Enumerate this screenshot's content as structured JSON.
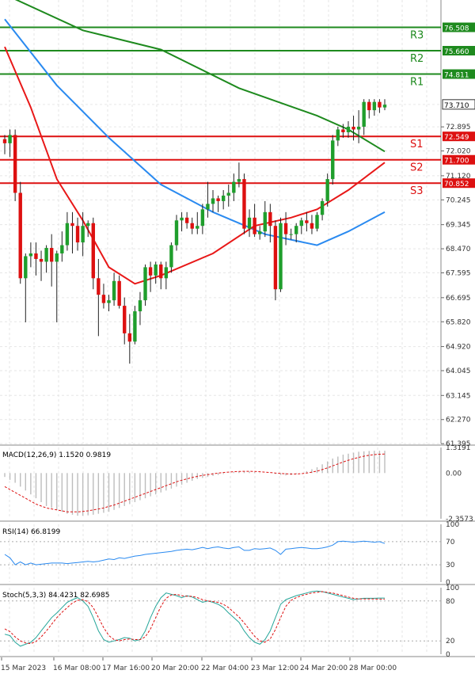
{
  "chart_data": [
    {
      "type": "candlestick",
      "title": "",
      "x_labels": [
        "15 Mar 2023",
        "16 Mar 08:00",
        "17 Mar 16:00",
        "20 Mar 20:00",
        "22 Mar 04:00",
        "23 Mar 12:00",
        "24 Mar 20:00",
        "28 Mar 00:00"
      ],
      "y_ticks": [
        "76.508",
        "75.660",
        "74.811",
        "73.710",
        "72.895",
        "72.549",
        "72.020",
        "71.700",
        "71.120",
        "70.852",
        "70.245",
        "69.345",
        "68.470",
        "67.595",
        "66.695",
        "65.820",
        "64.920",
        "64.045",
        "63.145",
        "62.270",
        "61.395"
      ],
      "ylim": [
        61.4,
        77.5
      ],
      "colors": {
        "up": "#1f9e2c",
        "down": "#dd1010",
        "wick": "#222222"
      },
      "levels": [
        {
          "label": "R3",
          "value": 76.508,
          "price": "76.508",
          "color": "#1e8a1e"
        },
        {
          "label": "R2",
          "value": 75.66,
          "price": "75.660",
          "color": "#1e8a1e"
        },
        {
          "label": "R1",
          "value": 74.811,
          "price": "74.811",
          "color": "#1e8a1e"
        },
        {
          "label": "S1",
          "value": 72.549,
          "price": "72.549",
          "color": "#dd1010"
        },
        {
          "label": "S2",
          "value": 71.7,
          "price": "71.700",
          "color": "#dd1010"
        },
        {
          "label": "S3",
          "value": 70.852,
          "price": "70.852",
          "color": "#dd1010"
        }
      ],
      "current_price": {
        "value": 73.71,
        "label": "73.710"
      },
      "candles": [
        [
          72.45,
          72.6,
          71.9,
          72.3
        ],
        [
          72.3,
          72.8,
          71.8,
          72.6
        ],
        [
          72.6,
          72.8,
          70.2,
          70.5
        ],
        [
          70.5,
          70.9,
          67.2,
          67.4
        ],
        [
          67.4,
          68.3,
          65.8,
          68.2
        ],
        [
          68.2,
          68.7,
          67.8,
          68.3
        ],
        [
          68.3,
          68.7,
          67.5,
          68.1
        ],
        [
          68.1,
          68.4,
          67.3,
          68.0
        ],
        [
          68.0,
          68.6,
          67.6,
          68.5
        ],
        [
          68.5,
          69.0,
          67.1,
          68.0
        ],
        [
          68.0,
          68.4,
          65.8,
          68.3
        ],
        [
          68.3,
          69.1,
          68.0,
          68.6
        ],
        [
          68.6,
          69.8,
          68.4,
          69.4
        ],
        [
          69.4,
          69.8,
          68.3,
          69.3
        ],
        [
          69.3,
          69.6,
          68.4,
          68.7
        ],
        [
          68.7,
          69.8,
          68.2,
          69.3
        ],
        [
          69.3,
          69.5,
          68.9,
          69.4
        ],
        [
          69.4,
          69.6,
          67.0,
          67.4
        ],
        [
          67.4,
          68.1,
          65.3,
          66.8
        ],
        [
          66.8,
          67.2,
          66.3,
          66.5
        ],
        [
          66.5,
          66.8,
          66.2,
          66.6
        ],
        [
          66.6,
          67.6,
          66.4,
          67.3
        ],
        [
          67.3,
          67.5,
          66.3,
          66.4
        ],
        [
          66.4,
          66.7,
          65.0,
          65.4
        ],
        [
          65.4,
          66.1,
          64.3,
          65.1
        ],
        [
          65.1,
          66.4,
          65.0,
          66.2
        ],
        [
          66.2,
          66.9,
          65.7,
          66.6
        ],
        [
          66.6,
          67.9,
          66.4,
          67.8
        ],
        [
          67.8,
          68.0,
          66.9,
          67.5
        ],
        [
          67.5,
          68.0,
          67.2,
          67.9
        ],
        [
          67.9,
          68.0,
          67.0,
          67.4
        ],
        [
          67.4,
          68.0,
          67.0,
          67.8
        ],
        [
          67.8,
          68.7,
          67.6,
          68.6
        ],
        [
          68.6,
          69.7,
          68.4,
          69.5
        ],
        [
          69.5,
          69.8,
          69.1,
          69.6
        ],
        [
          69.6,
          69.8,
          69.2,
          69.4
        ],
        [
          69.4,
          69.6,
          69.0,
          69.2
        ],
        [
          69.2,
          69.8,
          69.0,
          69.3
        ],
        [
          69.3,
          70.1,
          69.0,
          69.9
        ],
        [
          69.9,
          70.9,
          69.6,
          70.1
        ],
        [
          70.1,
          70.6,
          69.8,
          70.3
        ],
        [
          70.3,
          70.4,
          69.8,
          70.2
        ],
        [
          70.2,
          70.6,
          69.9,
          70.4
        ],
        [
          70.4,
          70.8,
          70.0,
          70.5
        ],
        [
          70.5,
          71.2,
          70.2,
          70.9
        ],
        [
          70.9,
          71.6,
          70.7,
          71.0
        ],
        [
          71.0,
          71.2,
          69.0,
          69.2
        ],
        [
          69.2,
          69.9,
          68.9,
          69.6
        ],
        [
          69.6,
          70.1,
          68.9,
          69.0
        ],
        [
          69.0,
          69.3,
          68.8,
          69.1
        ],
        [
          69.1,
          70.2,
          68.9,
          69.8
        ],
        [
          69.8,
          70.1,
          68.7,
          69.3
        ],
        [
          69.3,
          69.5,
          66.6,
          67.0
        ],
        [
          67.0,
          69.6,
          66.9,
          69.4
        ],
        [
          69.4,
          69.8,
          68.6,
          69.0
        ],
        [
          69.0,
          69.2,
          68.8,
          69.0
        ],
        [
          69.0,
          69.4,
          68.7,
          69.3
        ],
        [
          69.3,
          69.6,
          69.0,
          69.5
        ],
        [
          69.5,
          69.8,
          69.1,
          69.4
        ],
        [
          69.4,
          69.7,
          69.0,
          69.2
        ],
        [
          69.2,
          69.8,
          69.1,
          69.7
        ],
        [
          69.7,
          70.3,
          69.5,
          70.2
        ],
        [
          70.2,
          71.2,
          70.0,
          71.0
        ],
        [
          71.0,
          72.6,
          70.8,
          72.4
        ],
        [
          72.4,
          72.9,
          72.2,
          72.8
        ],
        [
          72.8,
          73.0,
          72.5,
          72.7
        ],
        [
          72.7,
          73.1,
          72.5,
          72.9
        ],
        [
          72.9,
          73.3,
          72.4,
          72.8
        ],
        [
          72.8,
          73.5,
          72.3,
          72.9
        ],
        [
          72.9,
          73.9,
          72.6,
          73.8
        ],
        [
          73.8,
          73.9,
          73.2,
          73.5
        ],
        [
          73.5,
          73.9,
          73.3,
          73.8
        ],
        [
          73.8,
          73.9,
          73.4,
          73.6
        ],
        [
          73.6,
          73.9,
          73.5,
          73.7
        ]
      ],
      "moving_averages": [
        {
          "color": "#1e8a1e",
          "points": [
            [
              0,
              77.7
            ],
            [
              15,
              76.4
            ],
            [
              30,
              75.7
            ],
            [
              45,
              74.3
            ],
            [
              60,
              73.3
            ],
            [
              66,
              72.8
            ],
            [
              73,
              72.0
            ]
          ]
        },
        {
          "color": "#2a8af0",
          "points": [
            [
              0,
              76.8
            ],
            [
              10,
              74.4
            ],
            [
              20,
              72.5
            ],
            [
              30,
              70.8
            ],
            [
              40,
              69.8
            ],
            [
              50,
              69.0
            ],
            [
              60,
              68.6
            ],
            [
              66,
              69.1
            ],
            [
              73,
              69.8
            ]
          ]
        },
        {
          "color": "#e81818",
          "points": [
            [
              0,
              75.8
            ],
            [
              5,
              73.6
            ],
            [
              10,
              71.0
            ],
            [
              15,
              69.5
            ],
            [
              20,
              67.8
            ],
            [
              25,
              67.2
            ],
            [
              30,
              67.5
            ],
            [
              40,
              68.3
            ],
            [
              48,
              69.3
            ],
            [
              55,
              69.6
            ],
            [
              60,
              69.9
            ],
            [
              66,
              70.6
            ],
            [
              73,
              71.6
            ]
          ]
        }
      ]
    },
    {
      "type": "histogram",
      "label": "MACD(12,26,9) 1.1520 0.9819",
      "y_ticks": [
        "1.3191",
        "0.00",
        "-2.3573"
      ],
      "ylim": [
        -2.3573,
        1.3191
      ],
      "colors": {
        "bar": "#bdbdbd",
        "signal": "#dd1010"
      },
      "macd": [
        -0.2,
        -0.35,
        -0.5,
        -0.7,
        -0.9,
        -1.1,
        -1.3,
        -1.5,
        -1.7,
        -1.8,
        -1.9,
        -2.0,
        -2.1,
        -2.15,
        -2.2,
        -2.2,
        -2.18,
        -2.15,
        -2.1,
        -2.05,
        -2.0,
        -1.9,
        -1.8,
        -1.7,
        -1.6,
        -1.5,
        -1.4,
        -1.3,
        -1.2,
        -1.1,
        -1.0,
        -0.9,
        -0.8,
        -0.7,
        -0.6,
        -0.5,
        -0.4,
        -0.3,
        -0.25,
        -0.2,
        -0.15,
        -0.1,
        -0.05,
        0.0,
        0.05,
        0.08,
        0.1,
        0.08,
        0.05,
        0.02,
        0.0,
        0.0,
        -0.05,
        -0.1,
        -0.12,
        -0.1,
        -0.05,
        0.0,
        0.1,
        0.2,
        0.3,
        0.45,
        0.6,
        0.75,
        0.85,
        0.95,
        1.0,
        1.05,
        1.1,
        1.12,
        1.14,
        1.15,
        1.15,
        1.15
      ],
      "signal": [
        -0.7,
        -0.85,
        -1.0,
        -1.15,
        -1.3,
        -1.45,
        -1.6,
        -1.7,
        -1.8,
        -1.85,
        -1.9,
        -1.95,
        -2.0,
        -2.0,
        -2.0,
        -1.98,
        -1.95,
        -1.9,
        -1.85,
        -1.8,
        -1.72,
        -1.65,
        -1.55,
        -1.45,
        -1.35,
        -1.25,
        -1.15,
        -1.05,
        -0.95,
        -0.85,
        -0.75,
        -0.65,
        -0.55,
        -0.45,
        -0.37,
        -0.3,
        -0.23,
        -0.17,
        -0.12,
        -0.08,
        -0.04,
        0.0,
        0.03,
        0.05,
        0.07,
        0.08,
        0.09,
        0.09,
        0.08,
        0.07,
        0.05,
        0.03,
        0.0,
        -0.02,
        -0.04,
        -0.05,
        -0.05,
        -0.03,
        0.0,
        0.05,
        0.1,
        0.18,
        0.27,
        0.37,
        0.47,
        0.57,
        0.66,
        0.74,
        0.81,
        0.87,
        0.92,
        0.95,
        0.97,
        0.98
      ]
    },
    {
      "type": "line",
      "label": "RSI(14) 66.8199",
      "y_ticks": [
        "100",
        "70",
        "30",
        "0"
      ],
      "ylim": [
        0,
        100
      ],
      "colors": {
        "line": "#2a8af0",
        "guide": "#aaaaaa"
      },
      "values": [
        48,
        42,
        30,
        35,
        30,
        33,
        30,
        31,
        32,
        33,
        33,
        33,
        32,
        33,
        34,
        35,
        36,
        35,
        36,
        38,
        40,
        39,
        42,
        41,
        43,
        45,
        46,
        48,
        49,
        50,
        51,
        52,
        53,
        55,
        56,
        57,
        56,
        58,
        60,
        58,
        60,
        61,
        59,
        58,
        60,
        61,
        55,
        55,
        58,
        57,
        58,
        59,
        55,
        48,
        57,
        58,
        59,
        60,
        59,
        58,
        58,
        59,
        61,
        64,
        70,
        71,
        70,
        69,
        70,
        71,
        70,
        69,
        70,
        66.8
      ]
    },
    {
      "type": "line",
      "label": "Stoch(5,3,3) 84.4231 82.6985",
      "y_ticks": [
        "100",
        "80",
        "20",
        "0"
      ],
      "ylim": [
        0,
        100
      ],
      "colors": {
        "k": "#26a69a",
        "d": "#dd1010",
        "guide": "#aaaaaa"
      },
      "k": [
        30,
        28,
        18,
        12,
        15,
        18,
        25,
        35,
        45,
        55,
        62,
        70,
        78,
        82,
        85,
        80,
        72,
        55,
        35,
        22,
        18,
        20,
        22,
        25,
        24,
        20,
        22,
        35,
        55,
        72,
        85,
        92,
        90,
        88,
        85,
        88,
        86,
        82,
        78,
        80,
        78,
        75,
        70,
        62,
        55,
        48,
        35,
        25,
        18,
        15,
        22,
        35,
        55,
        75,
        82,
        85,
        88,
        90,
        92,
        94,
        95,
        94,
        92,
        90,
        88,
        86,
        84,
        82,
        83,
        84,
        84,
        84,
        84.4,
        84.4
      ],
      "d": [
        38,
        34,
        26,
        20,
        17,
        16,
        19,
        26,
        35,
        45,
        55,
        63,
        70,
        77,
        81,
        82,
        79,
        70,
        55,
        40,
        28,
        22,
        20,
        22,
        23,
        22,
        22,
        26,
        38,
        55,
        72,
        84,
        89,
        90,
        88,
        87,
        87,
        85,
        82,
        80,
        79,
        78,
        75,
        70,
        63,
        56,
        47,
        37,
        27,
        20,
        18,
        23,
        37,
        55,
        72,
        81,
        85,
        88,
        90,
        92,
        93,
        94,
        93,
        92,
        90,
        88,
        86,
        84,
        83,
        83,
        83,
        83,
        82.7,
        82.7
      ]
    }
  ]
}
